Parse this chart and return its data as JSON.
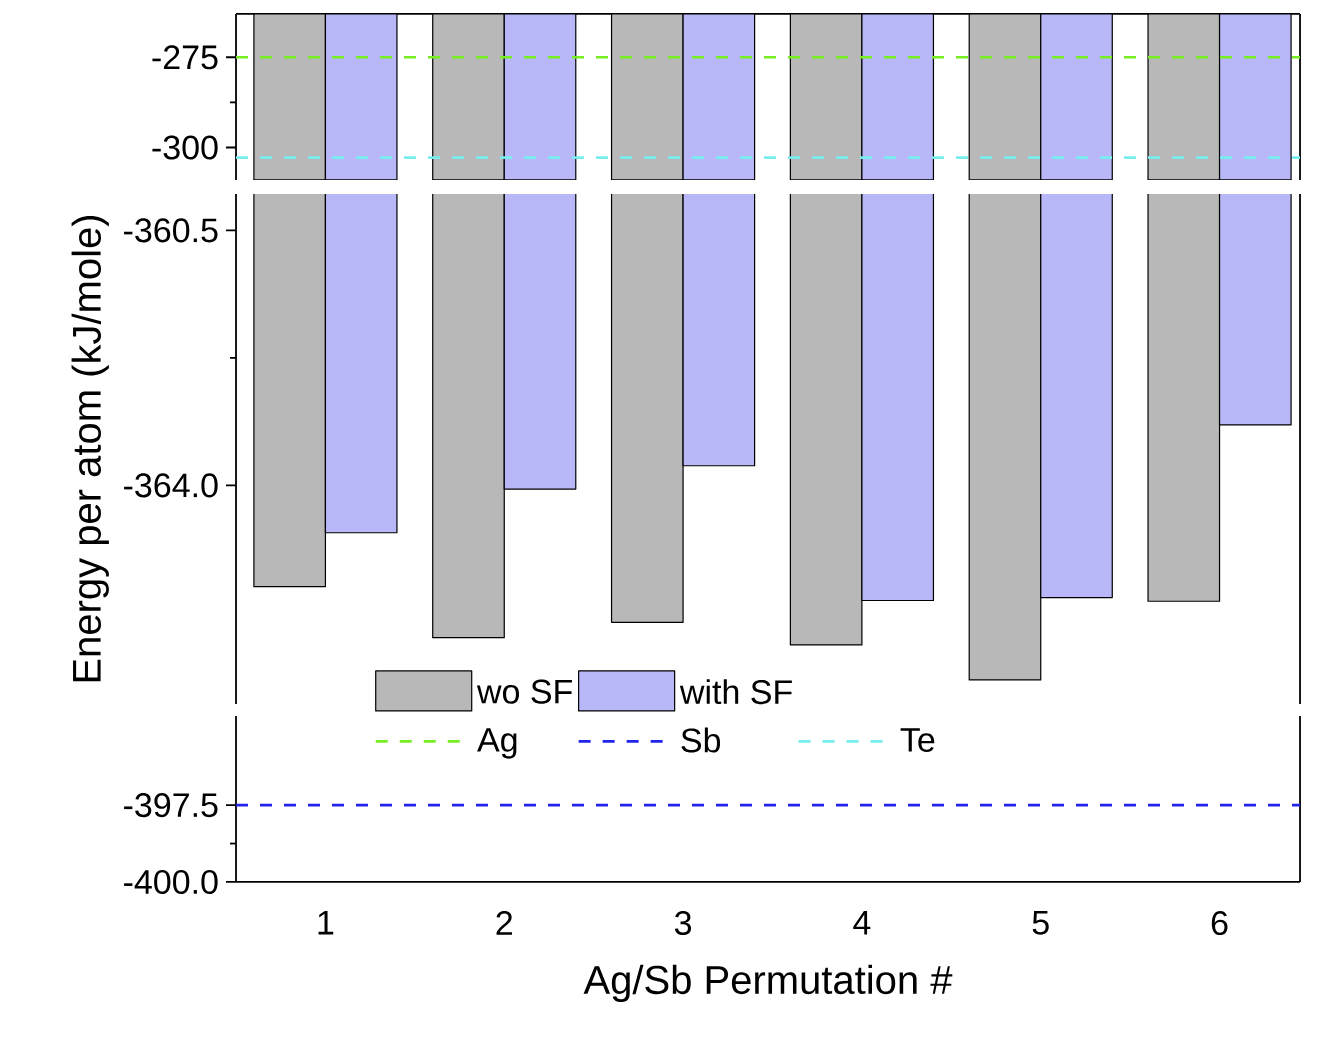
{
  "chart_data": [
    {
      "type": "bar",
      "categories": [
        "1",
        "2",
        "3",
        "4",
        "5",
        "6"
      ],
      "series": [
        {
          "color": "#b8b8b8",
          "values": [
            -46,
            -46,
            -46,
            -46,
            -46,
            -46
          ],
          "base": [
            -263,
            -263,
            -263,
            -263,
            -263,
            -263
          ]
        },
        {
          "color": "#b8b8f8",
          "values": [
            -46,
            -46,
            -46,
            -46,
            -46,
            -46
          ],
          "base": [
            -263,
            -263,
            -263,
            -263,
            -263,
            -263
          ]
        }
      ],
      "ylim": [
        -309,
        -263
      ],
      "yticks": [
        -275,
        -300
      ],
      "tick_labels": "y",
      "ref_lines": [
        {
          "axis": "y",
          "value": -275,
          "label": "Ag",
          "color": "#77ee22",
          "line_style": "dashed"
        },
        {
          "axis": "y",
          "value": -302.8,
          "label": "Te",
          "color": "#77eeee",
          "line_style": "dashed"
        }
      ]
    },
    {
      "type": "bar",
      "categories": [
        "1",
        "2",
        "3",
        "4",
        "5",
        "6"
      ],
      "series": [
        {
          "name": "wo SF",
          "color": "#b8b8b8",
          "values": [
            -365.39,
            -366.09,
            -365.88,
            -366.19,
            -366.67,
            -365.59
          ]
        },
        {
          "name": "with SF",
          "color": "#b8b8f8",
          "values": [
            -364.65,
            -364.05,
            -363.73,
            -365.58,
            -365.54,
            -363.17
          ]
        }
      ],
      "ylim": [
        -367,
        -360
      ],
      "yticks": [
        -360.5,
        {
          "value": -364,
          "label": "-364.0"
        }
      ],
      "tick_labels": "y",
      "ylabel": "Energy per atom (kJ/mole)",
      "legend": "bottom"
    },
    {
      "type": "bar",
      "categories": [
        "1",
        "2",
        "3",
        "4",
        "5",
        "6"
      ],
      "ylim": [
        -400,
        -394.6
      ],
      "yticks": [
        -397.5,
        {
          "value": -400,
          "label": "-400.0"
        }
      ],
      "xlabel": "Ag/Sb Permutation #",
      "ref_lines": [
        {
          "axis": "y",
          "value": -397.5,
          "label": "Sb",
          "color": "#2222ee",
          "line_style": "dashed"
        }
      ]
    }
  ]
}
